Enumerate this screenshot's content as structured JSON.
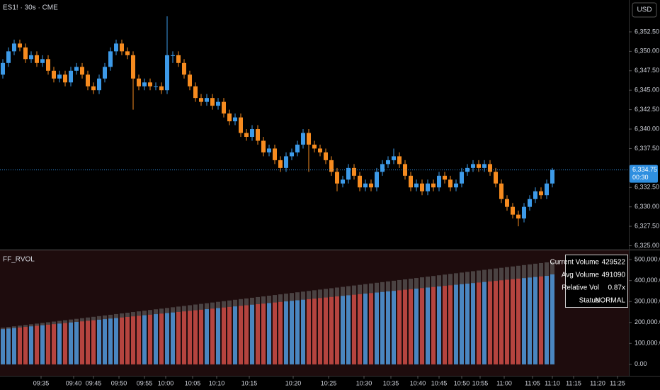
{
  "chart_data": [
    {
      "type": "candlestick",
      "title": "ES1! · 30s · CME",
      "currency": "USD",
      "up_color": "#3d9ae8",
      "down_color": "#f68b1f",
      "ohlc": [
        [
          6347.0,
          6349.0,
          6346.5,
          6348.5
        ],
        [
          6348.5,
          6350.5,
          6348.0,
          6350.0
        ],
        [
          6350.0,
          6351.5,
          6349.5,
          6351.0
        ],
        [
          6351.0,
          6351.5,
          6350.0,
          6350.5
        ],
        [
          6350.5,
          6351.0,
          6348.5,
          6349.0
        ],
        [
          6349.0,
          6350.0,
          6348.5,
          6349.5
        ],
        [
          6349.5,
          6350.0,
          6348.0,
          6348.5
        ],
        [
          6348.5,
          6349.5,
          6348.0,
          6349.0
        ],
        [
          6349.0,
          6349.5,
          6347.0,
          6347.5
        ],
        [
          6347.5,
          6348.0,
          6346.0,
          6346.5
        ],
        [
          6346.5,
          6347.5,
          6346.0,
          6347.0
        ],
        [
          6347.0,
          6347.5,
          6345.5,
          6346.0
        ],
        [
          6346.0,
          6348.0,
          6345.5,
          6347.5
        ],
        [
          6347.5,
          6348.5,
          6347.0,
          6348.0
        ],
        [
          6348.0,
          6348.5,
          6346.5,
          6347.0
        ],
        [
          6347.0,
          6347.5,
          6345.0,
          6345.5
        ],
        [
          6345.5,
          6346.0,
          6344.5,
          6345.0
        ],
        [
          6345.0,
          6347.0,
          6344.5,
          6346.5
        ],
        [
          6346.5,
          6348.5,
          6346.0,
          6348.0
        ],
        [
          6348.0,
          6350.5,
          6347.5,
          6350.0
        ],
        [
          6350.0,
          6351.5,
          6349.5,
          6351.0
        ],
        [
          6351.0,
          6351.5,
          6349.5,
          6350.0
        ],
        [
          6350.0,
          6350.5,
          6349.0,
          6349.5
        ],
        [
          6349.5,
          6350.0,
          6342.5,
          6346.5
        ],
        [
          6346.5,
          6347.0,
          6345.0,
          6345.5
        ],
        [
          6345.5,
          6346.5,
          6345.0,
          6346.0
        ],
        [
          6346.0,
          6346.5,
          6345.0,
          6345.5
        ],
        [
          6345.5,
          6346.0,
          6345.0,
          6345.5
        ],
        [
          6345.5,
          6346.0,
          6344.5,
          6345.0
        ],
        [
          6345.0,
          6354.5,
          6344.5,
          6349.5
        ],
        [
          6349.5,
          6350.0,
          6348.5,
          6349.5
        ],
        [
          6349.5,
          6350.0,
          6348.0,
          6348.5
        ],
        [
          6348.5,
          6349.0,
          6346.5,
          6347.0
        ],
        [
          6347.0,
          6347.5,
          6345.0,
          6345.5
        ],
        [
          6345.5,
          6346.0,
          6343.5,
          6344.0
        ],
        [
          6344.0,
          6344.5,
          6343.0,
          6343.5
        ],
        [
          6343.5,
          6344.5,
          6343.0,
          6344.0
        ],
        [
          6344.0,
          6344.5,
          6342.5,
          6343.0
        ],
        [
          6343.0,
          6344.0,
          6342.5,
          6343.5
        ],
        [
          6343.5,
          6344.0,
          6341.5,
          6342.0
        ],
        [
          6342.0,
          6342.5,
          6340.5,
          6341.0
        ],
        [
          6341.0,
          6342.0,
          6340.5,
          6341.5
        ],
        [
          6341.5,
          6342.0,
          6339.0,
          6339.5
        ],
        [
          6339.5,
          6340.0,
          6338.5,
          6339.0
        ],
        [
          6339.0,
          6340.5,
          6338.5,
          6340.0
        ],
        [
          6340.0,
          6340.5,
          6338.0,
          6338.5
        ],
        [
          6338.5,
          6339.0,
          6336.5,
          6337.0
        ],
        [
          6337.0,
          6338.0,
          6336.5,
          6337.5
        ],
        [
          6337.5,
          6338.0,
          6335.5,
          6336.0
        ],
        [
          6336.0,
          6336.5,
          6334.5,
          6335.0
        ],
        [
          6335.0,
          6337.0,
          6334.5,
          6336.5
        ],
        [
          6336.5,
          6337.5,
          6336.0,
          6337.0
        ],
        [
          6337.0,
          6338.5,
          6336.5,
          6338.0
        ],
        [
          6338.0,
          6340.0,
          6337.5,
          6339.5
        ],
        [
          6339.5,
          6340.0,
          6334.5,
          6338.0
        ],
        [
          6338.0,
          6338.5,
          6337.0,
          6337.5
        ],
        [
          6337.5,
          6338.0,
          6336.5,
          6337.0
        ],
        [
          6337.0,
          6337.5,
          6335.5,
          6336.0
        ],
        [
          6336.0,
          6336.5,
          6334.0,
          6334.5
        ],
        [
          6334.5,
          6335.0,
          6332.0,
          6333.0
        ],
        [
          6333.0,
          6334.0,
          6332.5,
          6333.5
        ],
        [
          6333.5,
          6335.5,
          6333.0,
          6335.0
        ],
        [
          6335.0,
          6335.5,
          6333.5,
          6334.0
        ],
        [
          6334.0,
          6334.5,
          6332.0,
          6332.5
        ],
        [
          6332.5,
          6333.5,
          6332.0,
          6333.0
        ],
        [
          6333.0,
          6333.5,
          6332.0,
          6332.5
        ],
        [
          6332.5,
          6335.0,
          6332.0,
          6334.5
        ],
        [
          6334.5,
          6336.0,
          6334.0,
          6335.5
        ],
        [
          6335.5,
          6336.5,
          6335.0,
          6336.0
        ],
        [
          6336.0,
          6337.5,
          6335.5,
          6336.5
        ],
        [
          6336.5,
          6337.0,
          6335.0,
          6335.5
        ],
        [
          6335.5,
          6336.0,
          6333.5,
          6334.0
        ],
        [
          6334.0,
          6334.5,
          6332.0,
          6332.5
        ],
        [
          6332.5,
          6333.5,
          6332.0,
          6333.0
        ],
        [
          6333.0,
          6333.5,
          6331.5,
          6332.0
        ],
        [
          6332.0,
          6333.5,
          6331.5,
          6333.0
        ],
        [
          6333.0,
          6333.5,
          6332.0,
          6332.5
        ],
        [
          6332.5,
          6334.5,
          6332.0,
          6334.0
        ],
        [
          6334.0,
          6334.5,
          6333.0,
          6333.5
        ],
        [
          6333.5,
          6334.0,
          6332.0,
          6332.5
        ],
        [
          6332.5,
          6333.5,
          6332.0,
          6333.0
        ],
        [
          6333.0,
          6335.0,
          6332.5,
          6334.5
        ],
        [
          6334.5,
          6335.5,
          6334.0,
          6335.0
        ],
        [
          6335.0,
          6336.0,
          6334.5,
          6335.5
        ],
        [
          6335.5,
          6336.0,
          6334.5,
          6335.0
        ],
        [
          6335.0,
          6336.0,
          6334.5,
          6335.5
        ],
        [
          6335.5,
          6336.0,
          6334.0,
          6334.5
        ],
        [
          6334.5,
          6335.0,
          6332.5,
          6333.0
        ],
        [
          6333.0,
          6333.5,
          6330.5,
          6331.0
        ],
        [
          6331.0,
          6331.5,
          6329.5,
          6330.0
        ],
        [
          6330.0,
          6330.5,
          6328.5,
          6329.0
        ],
        [
          6329.0,
          6329.5,
          6327.5,
          6328.5
        ],
        [
          6328.5,
          6330.5,
          6328.0,
          6330.0
        ],
        [
          6330.0,
          6331.5,
          6329.5,
          6331.0
        ],
        [
          6331.0,
          6332.5,
          6330.5,
          6332.0
        ],
        [
          6332.0,
          6332.5,
          6331.0,
          6331.5
        ],
        [
          6331.5,
          6333.5,
          6331.0,
          6333.0
        ],
        [
          6333.0,
          6335.0,
          6332.5,
          6334.75
        ]
      ],
      "xlim": [
        -0.5,
        110.5
      ],
      "xticks": [
        {
          "value": 6.75,
          "label": "09:35"
        },
        {
          "value": 12.5,
          "label": "09:40"
        },
        {
          "value": 16,
          "label": "09:45"
        },
        {
          "value": 20.5,
          "label": "09:50"
        },
        {
          "value": 25,
          "label": "09:55"
        },
        {
          "value": 28.75,
          "label": "10:00"
        },
        {
          "value": 33.5,
          "label": "10:05"
        },
        {
          "value": 37.75,
          "label": "10:10"
        },
        {
          "value": 43.5,
          "label": "10:15"
        },
        {
          "value": 51.25,
          "label": "10:20"
        },
        {
          "value": 57.5,
          "label": "10:25"
        },
        {
          "value": 63.75,
          "label": "10:30"
        },
        {
          "value": 68.5,
          "label": "10:35"
        },
        {
          "value": 73.25,
          "label": "10:40"
        },
        {
          "value": 77,
          "label": "10:45"
        },
        {
          "value": 81,
          "label": "10:50"
        },
        {
          "value": 84.25,
          "label": "10:55"
        },
        {
          "value": 88.5,
          "label": "11:00"
        },
        {
          "value": 93.5,
          "label": "11:05"
        },
        {
          "value": 97,
          "label": "11:10"
        },
        {
          "value": 100.75,
          "label": "11:15"
        },
        {
          "value": 105,
          "label": "11:20"
        },
        {
          "value": 108.5,
          "label": "11:25"
        }
      ],
      "ylim": [
        6324.5,
        6356.6
      ],
      "yticks": [
        {
          "value": 6325,
          "label": "6,325.00"
        },
        {
          "value": 6327.5,
          "label": "6,327.50"
        },
        {
          "value": 6330,
          "label": "6,330.00"
        },
        {
          "value": 6332.5,
          "label": "6,332.50"
        },
        {
          "value": 6337.5,
          "label": "6,337.50"
        },
        {
          "value": 6340,
          "label": "6,340.00"
        },
        {
          "value": 6342.5,
          "label": "6,342.50"
        },
        {
          "value": 6345,
          "label": "6,345.00"
        },
        {
          "value": 6347.5,
          "label": "6,347.50"
        },
        {
          "value": 6350,
          "label": "6,350.00"
        },
        {
          "value": 6352.5,
          "label": "6,352.50"
        }
      ],
      "last_price": {
        "value": 6334.75,
        "label": "6,334.75"
      },
      "countdown": "00:30",
      "last_color": "#2f8fe0"
    },
    {
      "type": "bar",
      "title": "FF_RVOL",
      "series": [
        {
          "color": "#4a4242",
          "values": [
            175000,
            178250,
            181500,
            184750,
            188000,
            191250,
            194500,
            197750,
            201000,
            204250,
            207500,
            210750,
            214000,
            217250,
            220500,
            223750,
            227000,
            230250,
            233500,
            236750,
            240000,
            243250,
            246500,
            249750,
            253000,
            256250,
            259500,
            262750,
            266000,
            269250,
            272500,
            275750,
            279000,
            282250,
            285500,
            288750,
            292000,
            295250,
            298500,
            301750,
            305000,
            308250,
            311500,
            314750,
            318000,
            321250,
            324500,
            327750,
            331000,
            334250,
            337500,
            340750,
            344000,
            347250,
            350500,
            353750,
            357000,
            360250,
            363500,
            366750,
            370000,
            373250,
            376500,
            379750,
            383000,
            386250,
            389500,
            392750,
            396000,
            399250,
            402500,
            405750,
            409000,
            412250,
            415500,
            418750,
            422000,
            425250,
            428500,
            431750,
            435000,
            438250,
            441500,
            444750,
            448000,
            451250,
            454500,
            457750,
            461000,
            464250,
            467500,
            470750,
            474000,
            477250,
            480500,
            483750,
            487000,
            491090
          ]
        },
        {
          "up_color": "#4a86c0",
          "down_color": "#b5443f",
          "values": [
            168000,
            170650,
            173300,
            175950,
            178600,
            181250,
            183900,
            186550,
            189200,
            191850,
            194500,
            197150,
            199800,
            202450,
            205100,
            207750,
            210400,
            213050,
            215700,
            218350,
            221000,
            223650,
            226300,
            228950,
            231600,
            234250,
            236900,
            239550,
            242200,
            244850,
            247500,
            250150,
            252800,
            255450,
            258100,
            260750,
            263400,
            266050,
            268700,
            271350,
            274000,
            276650,
            279300,
            281950,
            284600,
            287250,
            289900,
            292550,
            295200,
            297850,
            300500,
            303150,
            305800,
            308450,
            311100,
            313750,
            316400,
            319050,
            321700,
            324350,
            327000,
            329650,
            332300,
            334950,
            337600,
            340250,
            342900,
            345550,
            348200,
            350850,
            353500,
            356150,
            358800,
            361450,
            364100,
            366750,
            369400,
            372050,
            374700,
            377350,
            380000,
            382650,
            385300,
            387950,
            390600,
            393250,
            395900,
            398550,
            401200,
            403850,
            406500,
            409150,
            411800,
            414450,
            417100,
            419750,
            422400,
            429522
          ]
        }
      ],
      "ylim": [
        -54800,
        544500
      ],
      "yticks": [
        {
          "value": 0,
          "label": "0.00"
        },
        {
          "value": 100000,
          "label": "100,000.00"
        },
        {
          "value": 200000,
          "label": "200,000.00"
        },
        {
          "value": 300000,
          "label": "300,000.00"
        },
        {
          "value": 400000,
          "label": "400,000.00"
        },
        {
          "value": 500000,
          "label": "500,000.00"
        }
      ]
    }
  ],
  "table": {
    "rows": [
      [
        "Current Volume",
        429522
      ],
      [
        "Avg Volume",
        491090
      ],
      [
        "Relative Vol",
        "0.87x"
      ],
      [
        "Status",
        "NORMAL"
      ]
    ]
  }
}
